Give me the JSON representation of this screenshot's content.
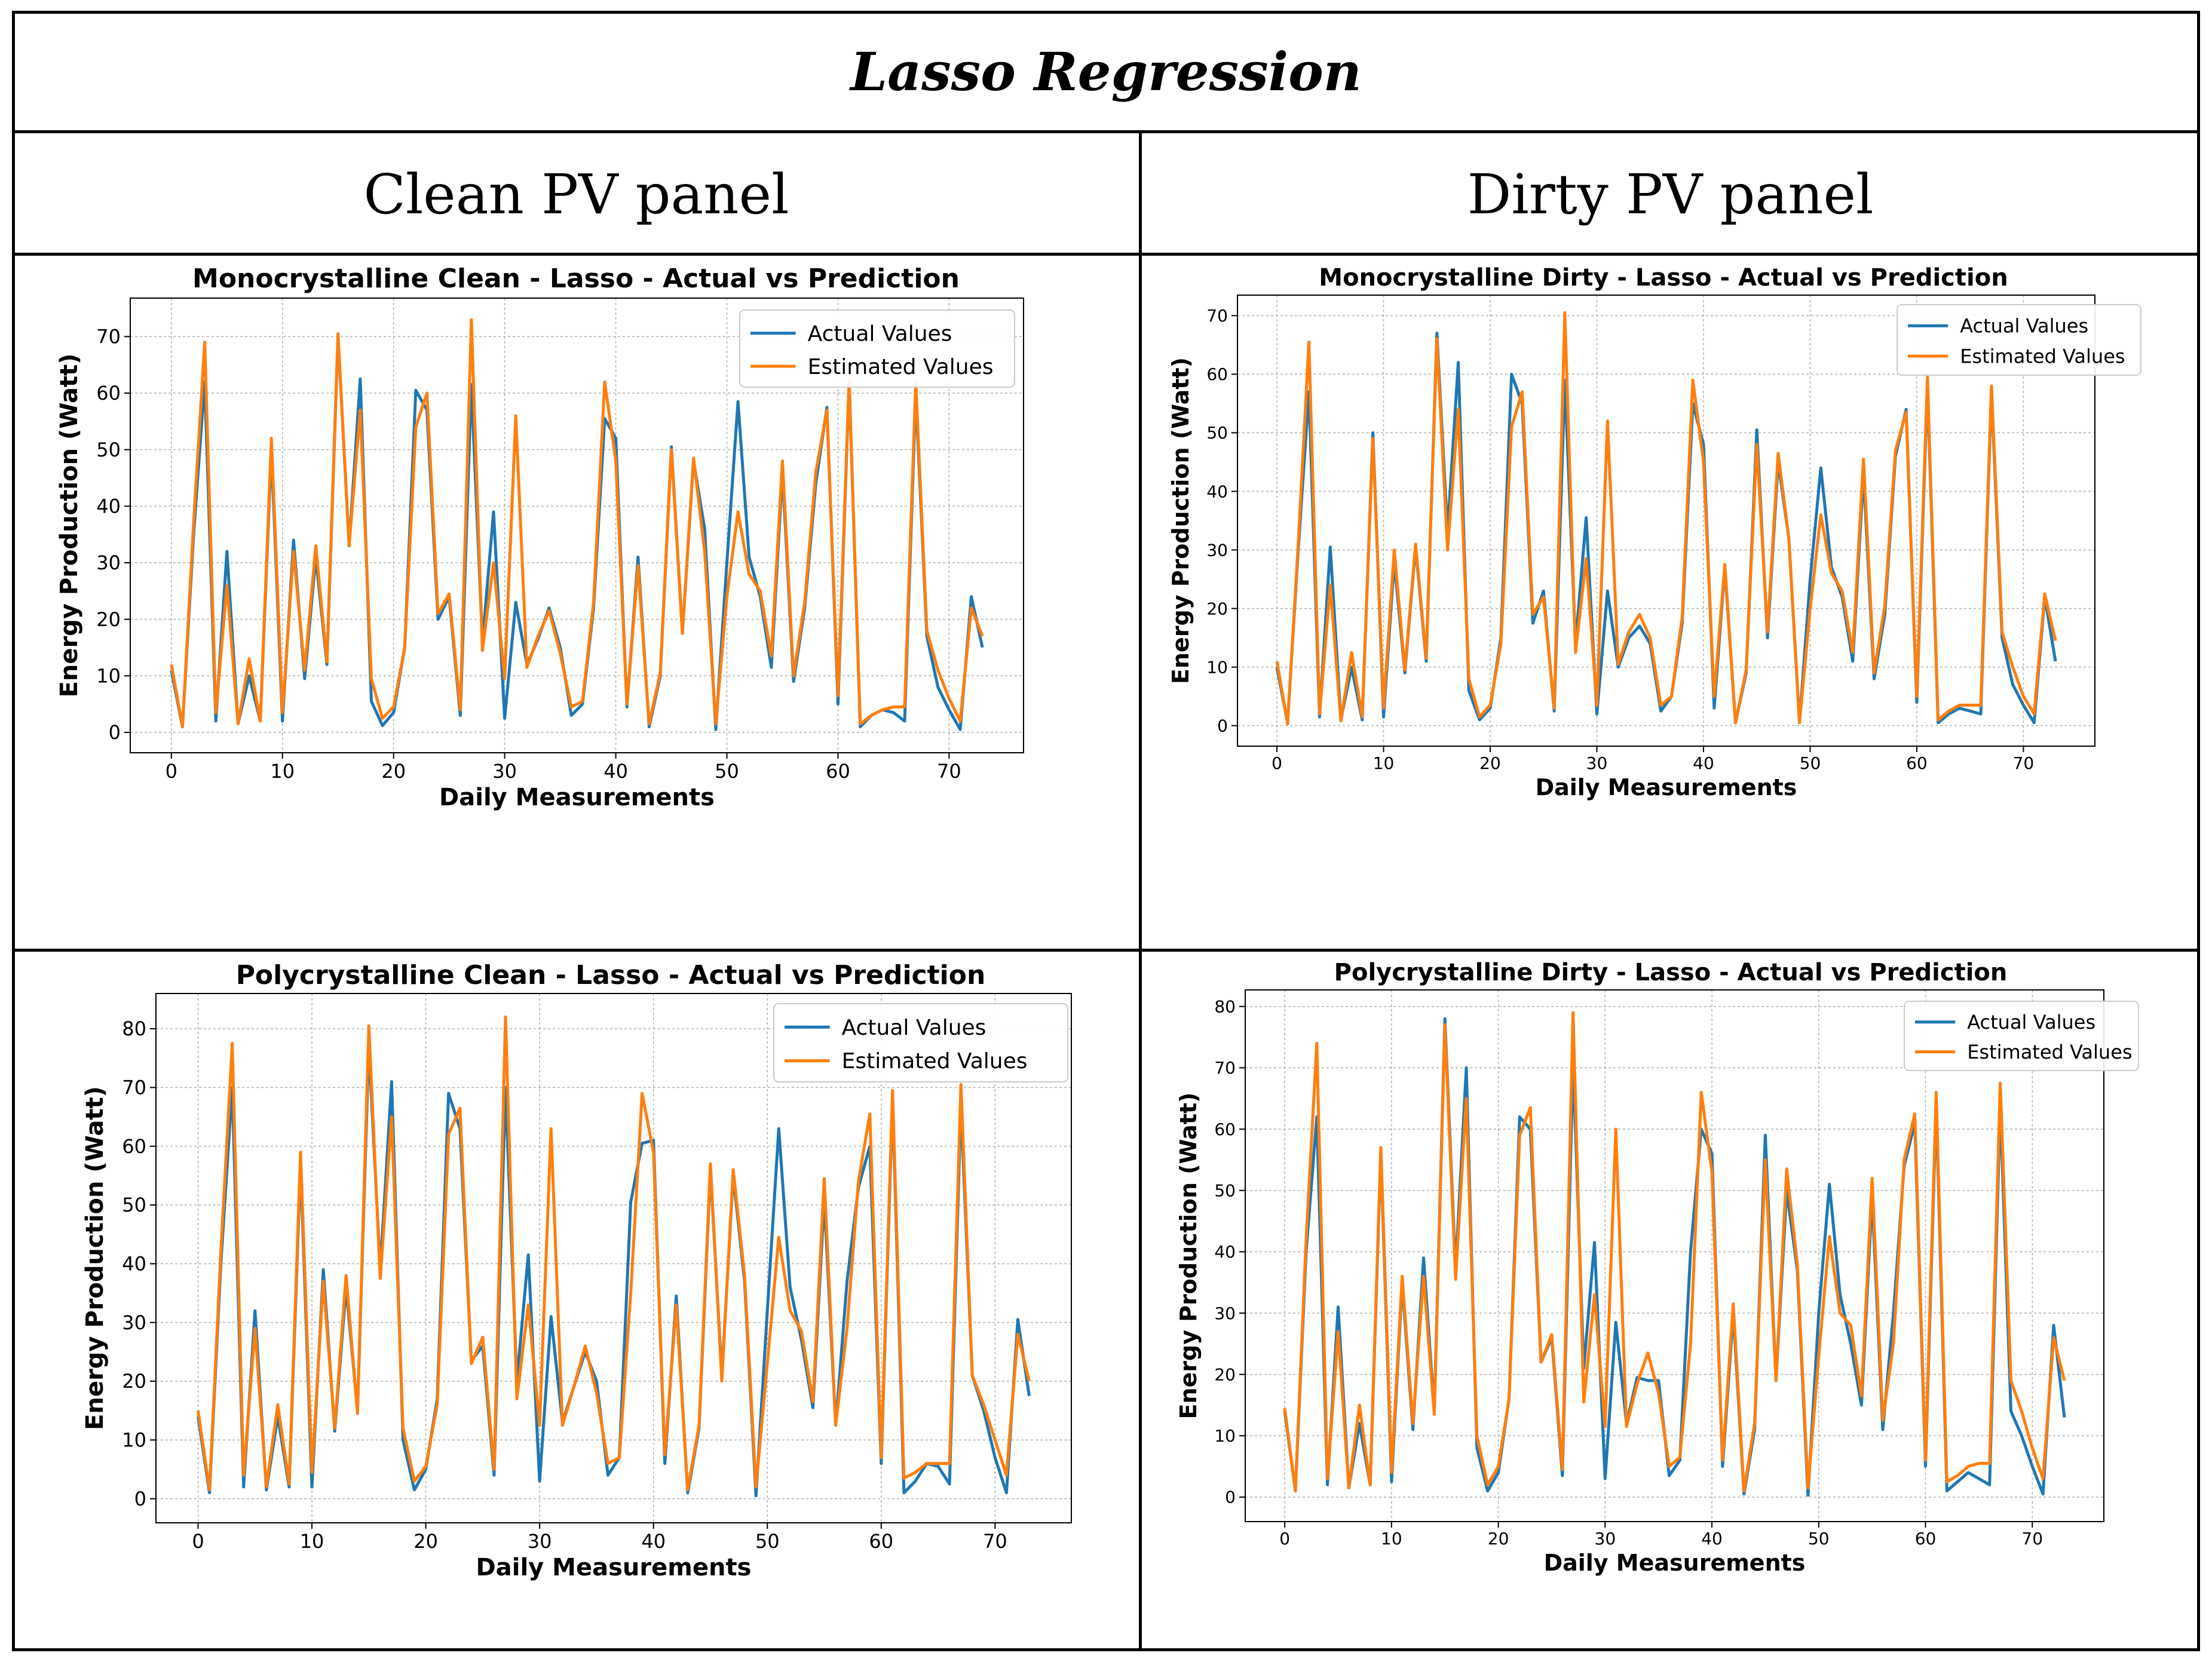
{
  "title": "Lasso Regression",
  "columns": [
    "Clean PV panel",
    "Dirty PV panel"
  ],
  "colors": {
    "actual": "#1f77b4",
    "estimated": "#ff7f0e"
  },
  "chart_data": [
    {
      "type": "line",
      "title": "Monocrystalline Clean  - Lasso - Actual vs Prediction",
      "xlabel": "Daily Measurements",
      "ylabel": "Energy Production (Watt)",
      "xlim": [
        -3.7,
        76.7
      ],
      "ylim": [
        -3.6,
        76.8
      ],
      "xticks": [
        0,
        10,
        20,
        30,
        40,
        50,
        60,
        70
      ],
      "yticks": [
        0,
        10,
        20,
        30,
        40,
        50,
        60,
        70
      ],
      "grid": true,
      "legend": "top-right",
      "series": [
        {
          "name": "Actual Values",
          "values": [
            11,
            1,
            35,
            62,
            2,
            32,
            1.5,
            10,
            2,
            50,
            2,
            34,
            9.5,
            31,
            12,
            70,
            33,
            62.5,
            5.5,
            1.2,
            3.5,
            15,
            60.5,
            57,
            20,
            24,
            3,
            61.5,
            16,
            39,
            2.5,
            23,
            12,
            16.5,
            22,
            15,
            3,
            5,
            22,
            55.5,
            52,
            4.5,
            31,
            1,
            10,
            50.5,
            17.5,
            48,
            36,
            0.5,
            30,
            58.5,
            31,
            24,
            11.5,
            46,
            9,
            22,
            44,
            57.5,
            5,
            62,
            1,
            3,
            4,
            3.5,
            2,
            60,
            17,
            8,
            4,
            0.5,
            24,
            15
          ]
        },
        {
          "name": "Estimated Values",
          "values": [
            12,
            1,
            37,
            69,
            3.5,
            26,
            1.5,
            13,
            2,
            52,
            3.5,
            32,
            11,
            33,
            12.5,
            70.5,
            33,
            57,
            9.5,
            2.5,
            4.5,
            15,
            54,
            60,
            21,
            24.5,
            4,
            73,
            14.5,
            30,
            9.5,
            56,
            11.5,
            17,
            21.5,
            14,
            4.5,
            5.5,
            23,
            62,
            48,
            5,
            29.5,
            1.5,
            10.5,
            50,
            17.5,
            48.5,
            32,
            1.5,
            24,
            39,
            28,
            25,
            13.5,
            48,
            10,
            23,
            46,
            57,
            6.5,
            62.5,
            1.5,
            3,
            4,
            4.5,
            4.5,
            62,
            18,
            11,
            6,
            2,
            22,
            17
          ]
        }
      ]
    },
    {
      "type": "line",
      "title": "Monocrystalline Dirty - Lasso - Actual vs Prediction",
      "xlabel": "Daily Measurements",
      "ylabel": "Energy Production (Watt)",
      "xlim": [
        -3.7,
        76.7
      ],
      "ylim": [
        -3.5,
        73.5
      ],
      "xticks": [
        0,
        10,
        20,
        30,
        40,
        50,
        60,
        70
      ],
      "yticks": [
        0,
        10,
        20,
        30,
        40,
        50,
        60,
        70
      ],
      "grid": true,
      "legend": "top-right",
      "series": [
        {
          "name": "Actual Values",
          "values": [
            10,
            0.5,
            30,
            57,
            1.5,
            30.5,
            1,
            10,
            1,
            50,
            1.5,
            28,
            9,
            30.5,
            11,
            67,
            33,
            62,
            6,
            1,
            3,
            15,
            60,
            55,
            17.5,
            23,
            2.5,
            59,
            14,
            35.5,
            2,
            23,
            10,
            15,
            17,
            14,
            2.5,
            5,
            17.5,
            55,
            48,
            3,
            27,
            0.5,
            9,
            50.5,
            15,
            45,
            32,
            0.5,
            25,
            44,
            27,
            22,
            11,
            43,
            8,
            19,
            46,
            54,
            4,
            58,
            0.5,
            2,
            3,
            2.5,
            2,
            57,
            15,
            7,
            3.5,
            0.5,
            22,
            11
          ]
        },
        {
          "name": "Estimated Values",
          "values": [
            11,
            0.3,
            31,
            65.5,
            2,
            24,
            0.8,
            12.5,
            1.5,
            49,
            3,
            30,
            9.5,
            31,
            11.5,
            66,
            30,
            54,
            8,
            1.5,
            3.5,
            14,
            51,
            57,
            19,
            22,
            3,
            70.5,
            12.5,
            28.5,
            3.5,
            52,
            10.5,
            16,
            19,
            15,
            3.5,
            5,
            18.5,
            59,
            45,
            5,
            27.5,
            0.5,
            9.5,
            48,
            16,
            46.5,
            32,
            0.5,
            20,
            36,
            26,
            23,
            12.5,
            45.5,
            9,
            20.5,
            47,
            53.5,
            5,
            59.5,
            1,
            2.5,
            3.5,
            3.5,
            3.5,
            58,
            16,
            10,
            5,
            2,
            22.5,
            14.5
          ]
        }
      ]
    },
    {
      "type": "line",
      "title": "Polycrystalline Clean - Lasso - Actual vs Prediction",
      "xlabel": "Daily Measurements",
      "ylabel": "Energy Production (Watt)",
      "xlim": [
        -3.7,
        76.7
      ],
      "ylim": [
        -4.1,
        86.0
      ],
      "xticks": [
        0,
        10,
        20,
        30,
        40,
        50,
        60,
        70
      ],
      "yticks": [
        0,
        10,
        20,
        30,
        40,
        50,
        60,
        70,
        80
      ],
      "grid": true,
      "legend": "top-right",
      "series": [
        {
          "name": "Actual Values",
          "values": [
            14,
            1,
            40,
            70,
            2,
            32,
            1.5,
            14,
            2,
            57,
            2,
            39,
            11.5,
            36,
            15,
            77,
            39,
            71,
            10,
            1.5,
            5,
            17,
            69,
            63,
            23.5,
            26,
            4,
            70,
            20,
            41.5,
            3,
            31,
            13,
            19,
            25,
            20,
            4,
            7,
            50.5,
            60.5,
            61,
            6,
            34.5,
            1,
            12,
            56,
            21,
            55,
            37,
            0.5,
            32,
            63,
            36,
            27,
            15.5,
            51,
            12.5,
            37,
            53,
            60,
            6,
            68,
            1,
            3,
            6,
            5.5,
            2.5,
            67,
            21,
            15,
            7,
            1,
            30.5,
            17.5
          ]
        },
        {
          "name": "Estimated Values",
          "values": [
            15,
            1.5,
            42,
            77.5,
            4,
            29,
            2,
            16,
            2.5,
            59,
            4.5,
            37,
            12,
            38,
            14.5,
            80.5,
            37.5,
            65,
            12,
            3,
            5.5,
            16,
            62,
            66.5,
            23,
            27.5,
            5,
            82,
            17,
            33,
            12.5,
            63,
            12.5,
            19,
            26,
            18,
            6,
            7,
            35,
            69,
            59,
            7.5,
            33,
            1.5,
            12.5,
            57,
            20,
            56,
            38,
            2,
            23,
            44.5,
            32,
            28.5,
            16.5,
            54.5,
            12.5,
            29,
            54,
            65.5,
            7,
            69.5,
            3.5,
            4.5,
            6,
            6,
            6,
            70.5,
            21,
            16,
            10,
            4,
            28,
            20
          ]
        }
      ]
    },
    {
      "type": "line",
      "title": "Polycrystalline Dirty - Lasso - Actual vs Prediction",
      "xlabel": "Daily Measurements",
      "ylabel": "Energy Production (Watt)",
      "xlim": [
        -3.7,
        76.7
      ],
      "ylim": [
        -4.0,
        82.7
      ],
      "xticks": [
        0,
        10,
        20,
        30,
        40,
        50,
        60,
        70
      ],
      "yticks": [
        0,
        10,
        20,
        30,
        40,
        50,
        60,
        70,
        80
      ],
      "grid": true,
      "legend": "top-right",
      "series": [
        {
          "name": "Actual Values",
          "values": [
            14,
            1,
            40,
            62,
            2,
            31,
            1.5,
            12,
            2,
            56,
            2.5,
            35,
            11,
            39,
            14,
            78,
            37,
            70,
            8,
            1,
            4,
            16,
            62,
            60,
            22,
            26,
            3.5,
            71,
            21,
            41.5,
            3,
            28.5,
            12,
            19.5,
            19,
            19,
            3.5,
            6,
            40,
            60,
            56,
            5,
            30,
            0.5,
            11,
            59,
            19,
            50,
            37,
            0.3,
            30,
            51,
            33,
            25,
            15,
            49,
            11,
            30,
            54,
            61,
            5,
            64,
            1,
            2.5,
            4,
            3,
            2,
            64,
            14,
            10,
            5,
            0.5,
            28,
            13
          ]
        },
        {
          "name": "Estimated Values",
          "values": [
            14.5,
            1,
            42,
            74,
            3,
            27,
            1.5,
            15,
            2,
            57,
            4,
            36,
            12,
            36,
            13.5,
            77,
            35.5,
            65,
            10,
            2,
            5,
            16,
            59,
            63.5,
            22,
            26.5,
            4.5,
            79,
            15.5,
            33,
            11.5,
            60,
            11.5,
            18.5,
            23.5,
            17,
            5,
            6.5,
            25,
            66,
            53,
            6,
            31.5,
            1,
            12,
            55,
            19,
            53.5,
            38,
            1.5,
            23,
            42.5,
            30,
            28,
            16.5,
            52,
            12.5,
            25,
            55,
            62.5,
            6,
            66,
            2.5,
            3.5,
            5,
            5.5,
            5.5,
            67.5,
            19,
            14,
            8,
            3,
            26,
            19
          ]
        }
      ]
    }
  ]
}
